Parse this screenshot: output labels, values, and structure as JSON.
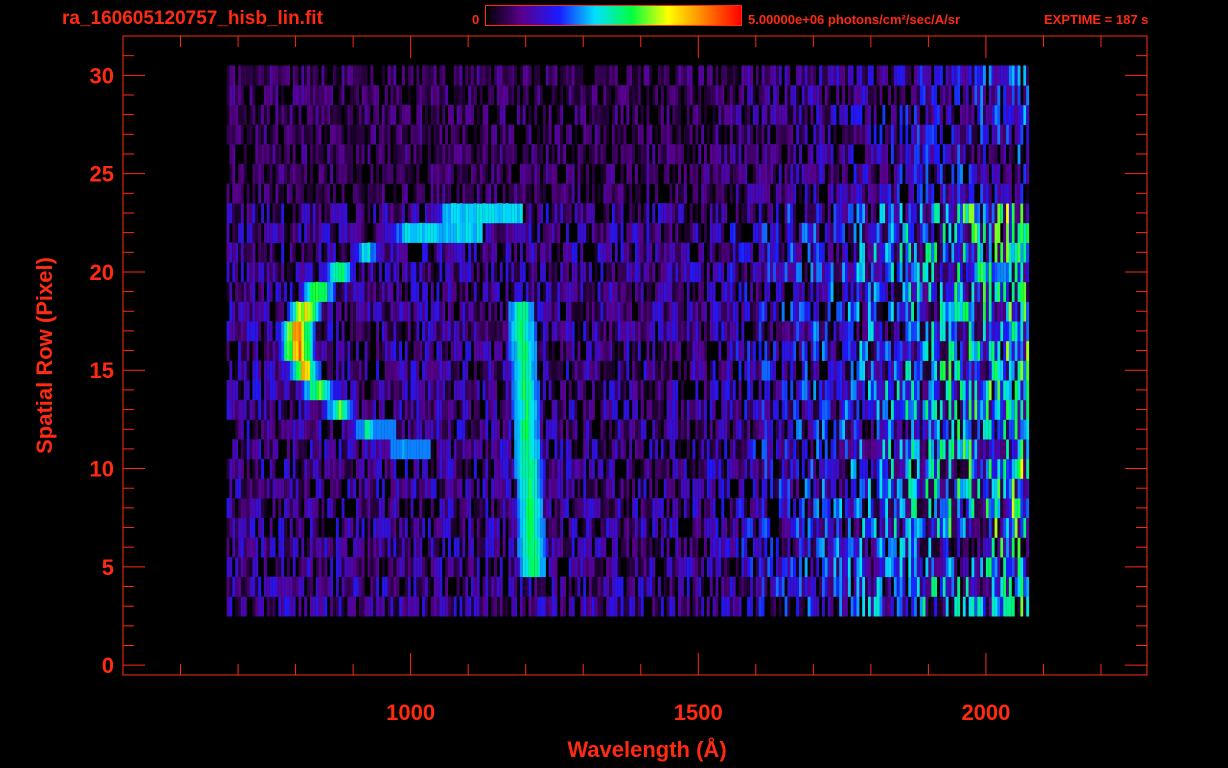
{
  "header": {
    "file_title": "ra_160605120757_hisb_lin.fit",
    "colorbar_min_label": "0",
    "colorbar_max_label": "5.00000e+06 photons/cm²/sec/A/sr",
    "exptime_label": "EXPTIME = 187 s"
  },
  "colors": {
    "axis": "#ff2a12",
    "background": "#000000",
    "colormap": [
      "#000000",
      "#5a0090",
      "#1a1aff",
      "#00e0ff",
      "#00ff40",
      "#ffff00",
      "#ff8000",
      "#ff0000"
    ]
  },
  "chart_data": {
    "type": "heatmap",
    "title": "ra_160605120757_hisb_lin.fit",
    "xlabel": "Wavelength (Å)",
    "ylabel": "Spatial Row (Pixel)",
    "xlim": [
      500,
      2280
    ],
    "ylim": [
      -0.5,
      32
    ],
    "x_ticks": [
      1000,
      1500,
      2000
    ],
    "y_ticks": [
      0,
      5,
      10,
      15,
      20,
      25,
      30
    ],
    "colorbar": {
      "min": 0,
      "max": 5000000,
      "units": "photons/cm²/sec/A/sr"
    },
    "grid": false,
    "features": [
      {
        "name": "",
        "center_wavelength": 800,
        "rows": [
          11,
          23
        ],
        "peak_rows": [
          14,
          20
        ],
        "peak_value_fraction": 0.95
      },
      {
        "name": "",
        "center_wavelength": 1210,
        "rows": [
          5,
          18
        ],
        "peak_value_fraction": 0.55
      }
    ],
    "continuum": {
      "wavelength_range": [
        680,
        2070
      ],
      "rows": [
        3,
        30
      ],
      "rising_toward": 2000
    }
  }
}
